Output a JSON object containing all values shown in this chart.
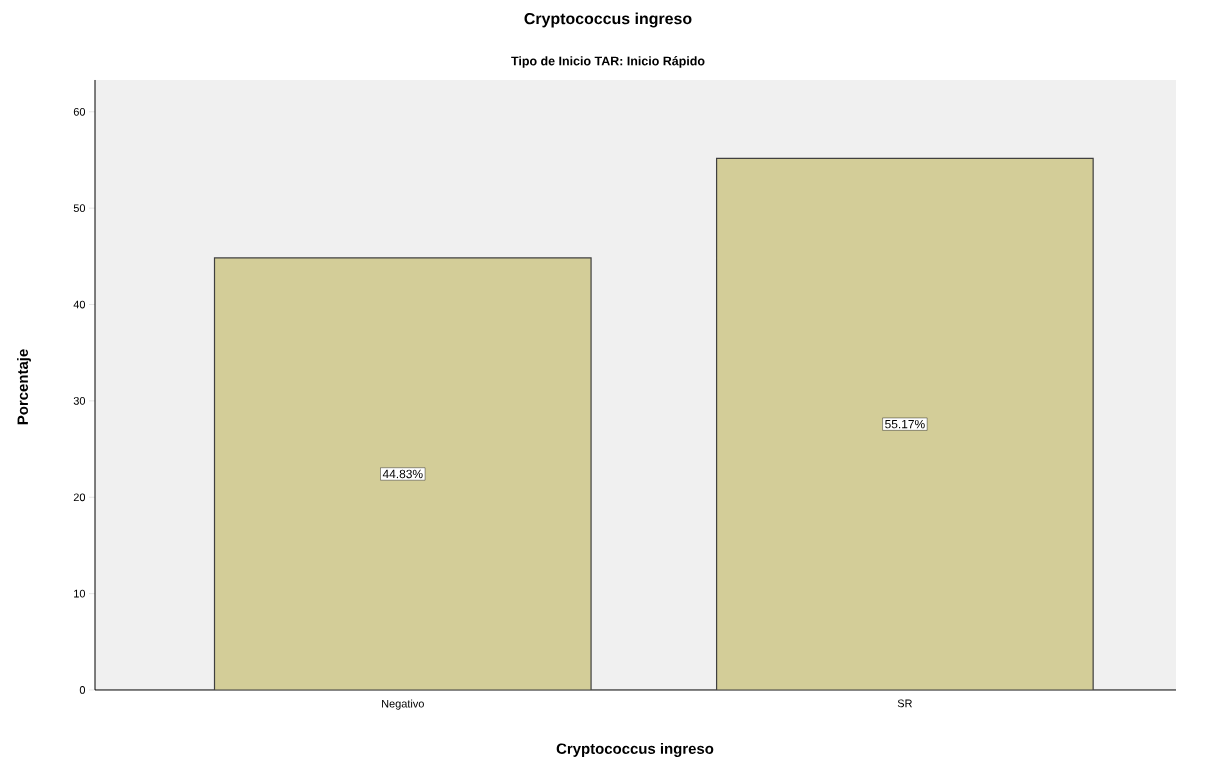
{
  "chart_data": {
    "type": "bar",
    "title": "Cryptococcus ingreso",
    "subtitle": "Tipo de Inicio TAR: Inicio Rápido",
    "xlabel": "Cryptococcus ingreso",
    "ylabel": "Porcentaje",
    "categories": [
      "Negativo",
      "SR"
    ],
    "values": [
      44.83,
      55.17
    ],
    "value_labels": [
      "44.83%",
      "55.17%"
    ],
    "color": "#d3cd98",
    "ylim": [
      0,
      63.3
    ],
    "yticks": [
      0,
      10,
      20,
      30,
      40,
      50,
      60
    ],
    "grid": false
  }
}
